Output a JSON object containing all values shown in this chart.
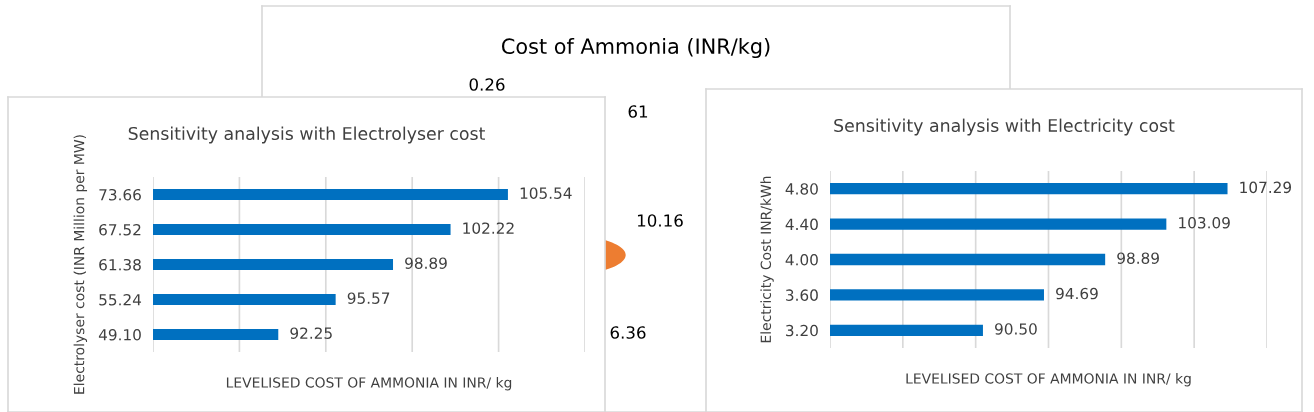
{
  "chart_data": [
    {
      "type": "other",
      "title": "Cost of Ammonia (INR/kg)",
      "annotations": [
        "0.26",
        "61",
        "10.16",
        "6.36"
      ]
    },
    {
      "type": "bar",
      "orientation": "horizontal",
      "title": "Sensitivity analysis with Electrolyser cost",
      "xlabel": "LEVELISED COST OF AMMONIA IN INR/ kg",
      "ylabel": "Electrolyser cost (INR Million per MW)",
      "categories": [
        "73.66",
        "67.52",
        "61.38",
        "55.24",
        "49.10"
      ],
      "values": [
        105.54,
        102.22,
        98.89,
        95.57,
        92.25
      ],
      "color": "#0070c0",
      "xlim": [
        85,
        110
      ],
      "xticks": [
        {
          "value": 85,
          "label": null
        },
        {
          "value": 90,
          "label": null
        },
        {
          "value": 95,
          "label": null
        },
        {
          "value": 100,
          "label": null
        },
        {
          "value": 105,
          "label": null
        },
        {
          "value": 110,
          "label": null
        }
      ],
      "value_labels": [
        "105.54",
        "102.22",
        "98.89",
        "95.57",
        "92.25"
      ],
      "tick_labels": "y",
      "grid": "x",
      "legend": false
    },
    {
      "type": "bar",
      "orientation": "horizontal",
      "title": "Sensitivity analysis with Electricity cost",
      "xlabel": "LEVELISED COST OF AMMONIA IN INR/ kg",
      "ylabel": "Electricity Cost INR/kWh",
      "categories": [
        "4.80",
        "4.40",
        "4.00",
        "3.60",
        "3.20"
      ],
      "values": [
        107.29,
        103.09,
        98.89,
        94.69,
        90.5
      ],
      "value_labels": [
        "107.29",
        "103.09",
        "98.89",
        "94.69",
        "90.50"
      ],
      "color": "#0070c0",
      "xlim": [
        80,
        110
      ],
      "xticks": [
        {
          "value": 80,
          "label": null
        },
        {
          "value": 85,
          "label": null
        },
        {
          "value": 90,
          "label": null
        },
        {
          "value": 95,
          "label": null
        },
        {
          "value": 100,
          "label": null
        },
        {
          "value": 105,
          "label": null
        },
        {
          "value": 110,
          "label": null
        }
      ],
      "tick_labels": "y",
      "grid": "x",
      "legend": false
    }
  ]
}
